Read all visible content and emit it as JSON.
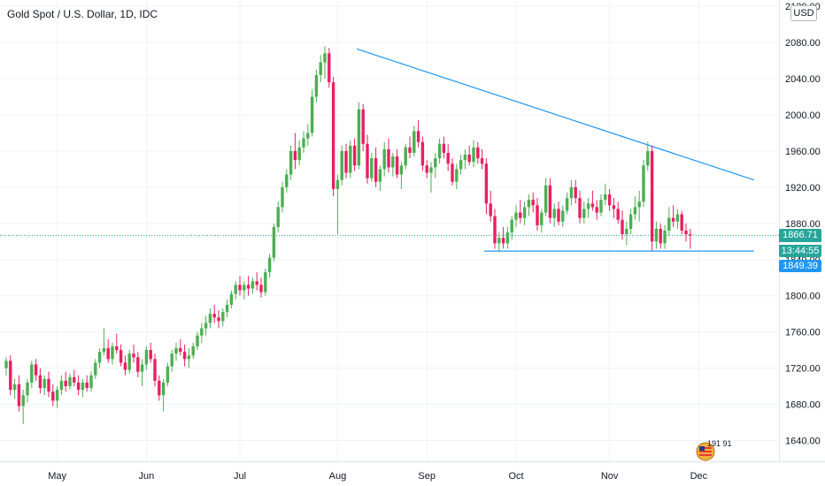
{
  "header": {
    "title": "Gold Spot / U.S. Dollar, 1D, IDC",
    "currency": "USD"
  },
  "colors": {
    "up": "#4caf50",
    "down": "#e91e63",
    "trendline": "#2196f3",
    "last_price": "#26a69a",
    "grid": "#f0f3fa",
    "axis_text": "#131722"
  },
  "tags": {
    "last_price": "1866.71",
    "countdown": "13:44:55",
    "support_level": "1849.39"
  },
  "logo": {
    "text": "191 91"
  },
  "chart_data": {
    "type": "candlestick",
    "title": "Gold Spot / U.S. Dollar, 1D, IDC",
    "ylim": [
      1617,
      2127
    ],
    "y_ticks": [
      1640,
      1680,
      1720,
      1760,
      1800,
      1840,
      1880,
      1920,
      1960,
      2000,
      2040,
      2080,
      2120
    ],
    "y_tick_labels": [
      "1640.00",
      "1680.00",
      "1720.00",
      "1760.00",
      "1800.00",
      "1840.00",
      "1880.00",
      "1920.00",
      "1960.00",
      "2000.00",
      "2040.00",
      "2080.00",
      "2120.00"
    ],
    "x_ticks": [
      {
        "label": "May",
        "index": 12
      },
      {
        "label": "Jun",
        "index": 33
      },
      {
        "label": "Jul",
        "index": 55
      },
      {
        "label": "Aug",
        "index": 78
      },
      {
        "label": "Sep",
        "index": 99
      },
      {
        "label": "Oct",
        "index": 120
      },
      {
        "label": "Nov",
        "index": 142
      },
      {
        "label": "Dec",
        "index": 163
      }
    ],
    "trendlines": [
      {
        "name": "descending resistance",
        "x1": 82.5,
        "y1": 2073,
        "x2": 176,
        "y2": 1928
      },
      {
        "name": "horizontal support",
        "x1": 112.5,
        "y1": 1849.39,
        "x2": 176,
        "y2": 1849.39
      }
    ],
    "candles": [
      [
        1720,
        1732,
        1712,
        1728
      ],
      [
        1728,
        1734,
        1690,
        1696
      ],
      [
        1696,
        1708,
        1686,
        1702
      ],
      [
        1702,
        1712,
        1672,
        1678
      ],
      [
        1678,
        1696,
        1658,
        1690
      ],
      [
        1690,
        1708,
        1682,
        1704
      ],
      [
        1704,
        1728,
        1698,
        1724
      ],
      [
        1724,
        1730,
        1706,
        1712
      ],
      [
        1712,
        1720,
        1692,
        1698
      ],
      [
        1698,
        1712,
        1690,
        1708
      ],
      [
        1708,
        1716,
        1688,
        1694
      ],
      [
        1694,
        1702,
        1678,
        1684
      ],
      [
        1684,
        1700,
        1676,
        1696
      ],
      [
        1696,
        1712,
        1690,
        1706
      ],
      [
        1706,
        1716,
        1694,
        1700
      ],
      [
        1700,
        1714,
        1696,
        1710
      ],
      [
        1710,
        1718,
        1700,
        1704
      ],
      [
        1704,
        1712,
        1690,
        1696
      ],
      [
        1696,
        1708,
        1688,
        1704
      ],
      [
        1704,
        1712,
        1694,
        1698
      ],
      [
        1698,
        1716,
        1694,
        1712
      ],
      [
        1712,
        1730,
        1708,
        1726
      ],
      [
        1726,
        1742,
        1720,
        1738
      ],
      [
        1738,
        1764,
        1734,
        1742
      ],
      [
        1742,
        1752,
        1726,
        1730
      ],
      [
        1730,
        1748,
        1724,
        1744
      ],
      [
        1744,
        1758,
        1736,
        1740
      ],
      [
        1740,
        1746,
        1722,
        1726
      ],
      [
        1726,
        1734,
        1712,
        1718
      ],
      [
        1718,
        1740,
        1714,
        1736
      ],
      [
        1736,
        1746,
        1726,
        1732
      ],
      [
        1732,
        1738,
        1710,
        1716
      ],
      [
        1716,
        1730,
        1700,
        1724
      ],
      [
        1724,
        1744,
        1718,
        1740
      ],
      [
        1740,
        1748,
        1726,
        1730
      ],
      [
        1730,
        1736,
        1700,
        1706
      ],
      [
        1706,
        1712,
        1684,
        1690
      ],
      [
        1690,
        1708,
        1672,
        1704
      ],
      [
        1704,
        1726,
        1700,
        1722
      ],
      [
        1722,
        1740,
        1716,
        1736
      ],
      [
        1736,
        1748,
        1728,
        1742
      ],
      [
        1742,
        1752,
        1734,
        1738
      ],
      [
        1738,
        1746,
        1722,
        1730
      ],
      [
        1730,
        1742,
        1720,
        1734
      ],
      [
        1734,
        1748,
        1730,
        1744
      ],
      [
        1744,
        1760,
        1740,
        1756
      ],
      [
        1756,
        1770,
        1748,
        1764
      ],
      [
        1764,
        1778,
        1756,
        1770
      ],
      [
        1770,
        1786,
        1764,
        1780
      ],
      [
        1780,
        1790,
        1770,
        1776
      ],
      [
        1776,
        1784,
        1764,
        1772
      ],
      [
        1772,
        1786,
        1766,
        1782
      ],
      [
        1782,
        1796,
        1776,
        1790
      ],
      [
        1790,
        1806,
        1786,
        1802
      ],
      [
        1802,
        1816,
        1796,
        1812
      ],
      [
        1812,
        1822,
        1800,
        1806
      ],
      [
        1806,
        1816,
        1796,
        1812
      ],
      [
        1812,
        1822,
        1800,
        1808
      ],
      [
        1808,
        1820,
        1802,
        1816
      ],
      [
        1816,
        1826,
        1806,
        1812
      ],
      [
        1812,
        1820,
        1798,
        1804
      ],
      [
        1804,
        1830,
        1800,
        1826
      ],
      [
        1826,
        1846,
        1820,
        1842
      ],
      [
        1842,
        1880,
        1838,
        1876
      ],
      [
        1876,
        1904,
        1870,
        1898
      ],
      [
        1898,
        1926,
        1892,
        1920
      ],
      [
        1920,
        1940,
        1914,
        1934
      ],
      [
        1934,
        1966,
        1928,
        1960
      ],
      [
        1960,
        1980,
        1940,
        1950
      ],
      [
        1950,
        1972,
        1944,
        1964
      ],
      [
        1964,
        1982,
        1958,
        1974
      ],
      [
        1974,
        1990,
        1966,
        1980
      ],
      [
        1980,
        2028,
        1976,
        2020
      ],
      [
        2020,
        2050,
        2014,
        2044
      ],
      [
        2044,
        2066,
        2036,
        2058
      ],
      [
        2058,
        2076,
        2040,
        2068
      ],
      [
        2068,
        2074,
        2030,
        2036
      ],
      [
        2036,
        2042,
        1910,
        1918
      ],
      [
        1918,
        1934,
        1868,
        1928
      ],
      [
        1928,
        1966,
        1922,
        1960
      ],
      [
        1960,
        1968,
        1930,
        1936
      ],
      [
        1936,
        1972,
        1930,
        1966
      ],
      [
        1966,
        1974,
        1938,
        1944
      ],
      [
        1944,
        2014,
        1940,
        2006
      ],
      [
        2006,
        2012,
        1960,
        1968
      ],
      [
        1968,
        1978,
        1924,
        1930
      ],
      [
        1930,
        1958,
        1926,
        1952
      ],
      [
        1952,
        1964,
        1920,
        1926
      ],
      [
        1926,
        1944,
        1916,
        1940
      ],
      [
        1940,
        1970,
        1932,
        1962
      ],
      [
        1962,
        1974,
        1936,
        1942
      ],
      [
        1942,
        1958,
        1932,
        1954
      ],
      [
        1954,
        1962,
        1930,
        1934
      ],
      [
        1934,
        1948,
        1918,
        1944
      ],
      [
        1944,
        1968,
        1940,
        1964
      ],
      [
        1964,
        1976,
        1952,
        1958
      ],
      [
        1958,
        1988,
        1954,
        1982
      ],
      [
        1982,
        1994,
        1964,
        1970
      ],
      [
        1970,
        1976,
        1938,
        1944
      ],
      [
        1944,
        1950,
        1930,
        1936
      ],
      [
        1936,
        1948,
        1914,
        1942
      ],
      [
        1942,
        1958,
        1930,
        1952
      ],
      [
        1952,
        1974,
        1946,
        1968
      ],
      [
        1968,
        1976,
        1952,
        1958
      ],
      [
        1958,
        1968,
        1938,
        1946
      ],
      [
        1946,
        1952,
        1922,
        1926
      ],
      [
        1926,
        1946,
        1918,
        1940
      ],
      [
        1940,
        1956,
        1934,
        1950
      ],
      [
        1950,
        1962,
        1940,
        1956
      ],
      [
        1956,
        1966,
        1944,
        1948
      ],
      [
        1948,
        1972,
        1942,
        1964
      ],
      [
        1964,
        1970,
        1946,
        1952
      ],
      [
        1952,
        1962,
        1940,
        1946
      ],
      [
        1946,
        1952,
        1890,
        1902
      ],
      [
        1902,
        1916,
        1882,
        1888
      ],
      [
        1888,
        1896,
        1852,
        1858
      ],
      [
        1858,
        1870,
        1848,
        1864
      ],
      [
        1864,
        1876,
        1852,
        1858
      ],
      [
        1858,
        1876,
        1852,
        1870
      ],
      [
        1870,
        1888,
        1862,
        1884
      ],
      [
        1884,
        1900,
        1876,
        1892
      ],
      [
        1892,
        1906,
        1880,
        1886
      ],
      [
        1886,
        1904,
        1878,
        1898
      ],
      [
        1898,
        1912,
        1888,
        1906
      ],
      [
        1906,
        1914,
        1892,
        1900
      ],
      [
        1900,
        1908,
        1872,
        1878
      ],
      [
        1878,
        1896,
        1870,
        1892
      ],
      [
        1892,
        1930,
        1888,
        1922
      ],
      [
        1922,
        1930,
        1880,
        1886
      ],
      [
        1886,
        1902,
        1876,
        1896
      ],
      [
        1896,
        1904,
        1878,
        1882
      ],
      [
        1882,
        1900,
        1876,
        1894
      ],
      [
        1894,
        1914,
        1890,
        1908
      ],
      [
        1908,
        1928,
        1900,
        1920
      ],
      [
        1920,
        1928,
        1902,
        1908
      ],
      [
        1908,
        1916,
        1880,
        1886
      ],
      [
        1886,
        1904,
        1880,
        1896
      ],
      [
        1896,
        1908,
        1886,
        1902
      ],
      [
        1902,
        1916,
        1894,
        1898
      ],
      [
        1898,
        1906,
        1884,
        1892
      ],
      [
        1892,
        1912,
        1888,
        1906
      ],
      [
        1906,
        1924,
        1900,
        1912
      ],
      [
        1912,
        1918,
        1894,
        1900
      ],
      [
        1900,
        1908,
        1886,
        1896
      ],
      [
        1896,
        1904,
        1880,
        1884
      ],
      [
        1884,
        1894,
        1862,
        1868
      ],
      [
        1868,
        1882,
        1856,
        1874
      ],
      [
        1874,
        1896,
        1868,
        1890
      ],
      [
        1890,
        1910,
        1884,
        1898
      ],
      [
        1898,
        1916,
        1882,
        1904
      ],
      [
        1904,
        1950,
        1898,
        1944
      ],
      [
        1944,
        1970,
        1938,
        1960
      ],
      [
        1960,
        1966,
        1850,
        1860
      ],
      [
        1860,
        1882,
        1852,
        1874
      ],
      [
        1874,
        1880,
        1852,
        1858
      ],
      [
        1858,
        1878,
        1852,
        1872
      ],
      [
        1872,
        1898,
        1866,
        1886
      ],
      [
        1886,
        1900,
        1876,
        1882
      ],
      [
        1882,
        1896,
        1874,
        1890
      ],
      [
        1890,
        1894,
        1868,
        1872
      ],
      [
        1872,
        1880,
        1860,
        1868
      ],
      [
        1868,
        1874,
        1852,
        1866.71
      ]
    ]
  }
}
